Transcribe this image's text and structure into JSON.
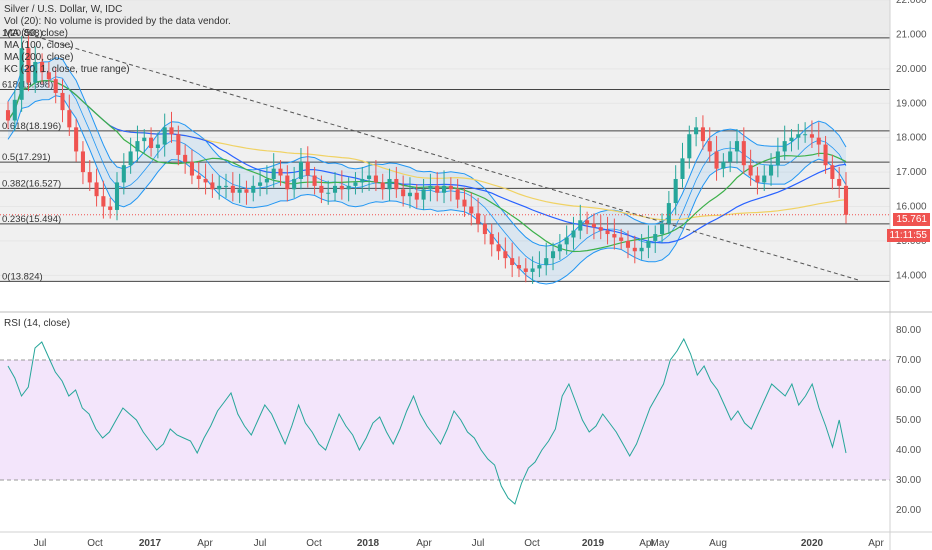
{
  "chart_data": [
    {
      "type": "candlestick",
      "title": "Silver / U.S. Dollar, W, IDC",
      "symbol": "Silver / U.S. Dollar",
      "interval": "W",
      "source": "IDC",
      "legend": [
        "Silver / U.S. Dollar, W, IDC",
        "Vol (20): No volume is provided by the data vendor.",
        "MA (50, close)",
        "MA (100, close)",
        "MA (200, close)",
        "KC (20, 1, close, true range)"
      ],
      "ylim": [
        13.4,
        22.0
      ],
      "y_ticks": [
        14.0,
        15.0,
        16.0,
        17.0,
        18.0,
        19.0,
        20.0,
        21.0,
        22.0
      ],
      "y_tick_labels": [
        "14.000",
        "15.000",
        "16.000",
        "17.000",
        "18.000",
        "19.000",
        "20.000",
        "21.000",
        "22.000"
      ],
      "fib_levels": [
        {
          "value": 20.898,
          "label": "1(20.898)"
        },
        {
          "value": 19.398,
          "label": "618(19.398)"
        },
        {
          "value": 18.196,
          "label": "0.618(18.196)"
        },
        {
          "value": 17.291,
          "label": "0.5(17.291)"
        },
        {
          "value": 16.527,
          "label": "0.382(16.527)"
        },
        {
          "value": 15.494,
          "label": "0.236(15.494)"
        },
        {
          "value": 13.824,
          "label": "0(13.824)"
        }
      ],
      "last_price": "15.761",
      "countdown": "11:11:55",
      "close_series": [
        18.5,
        19.1,
        20.6,
        19.6,
        20.2,
        19.9,
        19.7,
        19.3,
        18.8,
        18.3,
        17.6,
        17.0,
        16.7,
        16.3,
        16.0,
        15.9,
        16.7,
        17.2,
        17.6,
        17.9,
        18.0,
        17.7,
        17.8,
        18.3,
        18.1,
        17.5,
        17.3,
        16.9,
        16.8,
        16.7,
        16.5,
        16.6,
        16.6,
        16.4,
        16.5,
        16.4,
        16.6,
        16.7,
        16.8,
        17.1,
        16.9,
        16.5,
        16.8,
        17.3,
        16.9,
        16.6,
        16.4,
        16.4,
        16.6,
        16.5,
        16.6,
        16.7,
        16.8,
        16.9,
        16.7,
        16.5,
        16.8,
        16.5,
        16.3,
        16.4,
        16.2,
        16.5,
        16.6,
        16.4,
        16.6,
        16.5,
        16.2,
        16.0,
        15.8,
        15.5,
        15.2,
        14.9,
        14.7,
        14.5,
        14.3,
        14.2,
        14.1,
        14.2,
        14.3,
        14.5,
        14.7,
        14.9,
        15.1,
        15.3,
        15.6,
        15.5,
        15.4,
        15.3,
        15.2,
        15.1,
        15.0,
        14.8,
        14.7,
        14.8,
        15.0,
        15.2,
        15.5,
        16.1,
        16.8,
        17.4,
        18.1,
        18.3,
        17.9,
        17.6,
        17.1,
        17.3,
        17.6,
        17.9,
        17.2,
        16.9,
        16.7,
        16.9,
        17.2,
        17.6,
        17.9,
        18.0,
        18.1,
        18.1,
        18.0,
        17.8,
        17.2,
        16.8,
        16.6,
        15.76
      ],
      "ma_series": [
        {
          "name": "MA (50, close)",
          "color": "#3cb04a"
        },
        {
          "name": "MA (100, close)",
          "color": "#2962ff"
        },
        {
          "name": "MA (200, close)",
          "color": "#f0d264"
        }
      ],
      "keltner": {
        "name": "KC (20, 1, close, true range)",
        "color": "#2196f3"
      },
      "x_axis_labels": [
        "Jul",
        "Oct",
        "2017",
        "Apr",
        "Jul",
        "Oct",
        "2018",
        "Apr",
        "Jul",
        "Oct",
        "2019",
        "Apr",
        "May",
        "Aug",
        "2020",
        "Apr"
      ]
    },
    {
      "type": "line",
      "title": "RSI (14, close)",
      "ylim": [
        14.0,
        84.0
      ],
      "y_ticks": [
        20.0,
        30.0,
        40.0,
        50.0,
        60.0,
        70.0,
        80.0
      ],
      "y_tick_labels": [
        "20.00",
        "30.00",
        "40.00",
        "50.00",
        "60.00",
        "70.00",
        "80.00"
      ],
      "band": [
        30.0,
        70.0
      ],
      "color": "#26a69a",
      "values": [
        68,
        64,
        58,
        61,
        74,
        76,
        71,
        66,
        63,
        58,
        60,
        54,
        52,
        47,
        44,
        46,
        50,
        54,
        52,
        50,
        46,
        43,
        40,
        42,
        47,
        45,
        44,
        43,
        39,
        44,
        48,
        53,
        56,
        59,
        52,
        48,
        45,
        50,
        55,
        52,
        47,
        42,
        48,
        55,
        49,
        46,
        42,
        40,
        46,
        52,
        48,
        45,
        40,
        44,
        49,
        51,
        46,
        42,
        47,
        53,
        58,
        52,
        48,
        45,
        42,
        47,
        53,
        50,
        46,
        44,
        40,
        37,
        35,
        28,
        24,
        22,
        29,
        34,
        36,
        40,
        43,
        47,
        58,
        62,
        56,
        50,
        46,
        48,
        52,
        49,
        46,
        42,
        38,
        42,
        48,
        54,
        58,
        62,
        70,
        73,
        77,
        72,
        65,
        68,
        63,
        60,
        55,
        50,
        53,
        49,
        47,
        52,
        57,
        62,
        60,
        58,
        62,
        55,
        58,
        62,
        54,
        48,
        41,
        50,
        39
      ]
    }
  ]
}
